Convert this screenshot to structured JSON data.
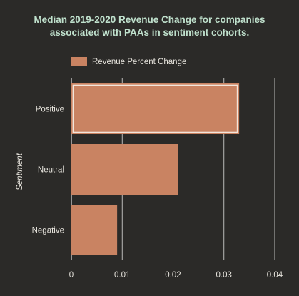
{
  "chart_data": {
    "type": "bar",
    "orientation": "horizontal",
    "title_lines": [
      "Median 2019-2020 Revenue Change for companies",
      "associated with PAAs in sentiment cohorts."
    ],
    "ylabel": "Sentiment",
    "xlabel": "",
    "categories": [
      "Positive",
      "Neutral",
      "Negative"
    ],
    "series": [
      {
        "name": "Revenue Percent Change",
        "values": [
          0.033,
          0.021,
          0.009
        ]
      }
    ],
    "xlim": [
      0,
      0.04
    ],
    "xticks": [
      "0",
      "0.01",
      "0.02",
      "0.03",
      "0.04"
    ],
    "xtick_values": [
      0,
      0.01,
      0.02,
      0.03,
      0.04
    ],
    "highlighted_category": "Positive",
    "grid": "vertical",
    "legend_position": "top-left",
    "colors": {
      "background": "#2b2a28",
      "bar": "#c98362",
      "highlight_outline": "#f2e6dc",
      "title": "#bfe0cc",
      "text": "#e6e3dc",
      "grid": "#ffffff"
    }
  }
}
